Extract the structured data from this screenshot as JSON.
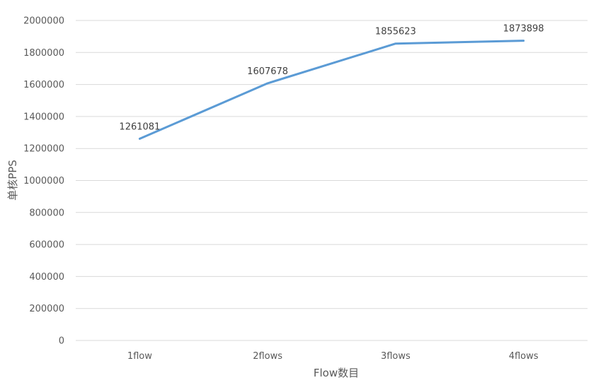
{
  "chart_data": {
    "type": "line",
    "title": "",
    "categories": [
      "1flow",
      "2flows",
      "3flows",
      "4flows"
    ],
    "series": [
      {
        "name": "单核PPS",
        "values": [
          1261081,
          1607678,
          1855623,
          1873898
        ],
        "color": "#5b9bd5"
      }
    ],
    "data_labels": [
      "1261081",
      "1607678",
      "1855623",
      "1873898"
    ],
    "xlabel": "Flow数目",
    "ylabel": "单核PPS",
    "ylim": [
      0,
      2000000
    ],
    "yticks": [
      0,
      200000,
      400000,
      600000,
      800000,
      1000000,
      1200000,
      1400000,
      1600000,
      1800000,
      2000000
    ],
    "ytick_labels": [
      "0",
      "200000",
      "400000",
      "600000",
      "800000",
      "1000000",
      "1200000",
      "1400000",
      "1600000",
      "1800000",
      "2000000"
    ],
    "grid": true,
    "legend": "none"
  }
}
